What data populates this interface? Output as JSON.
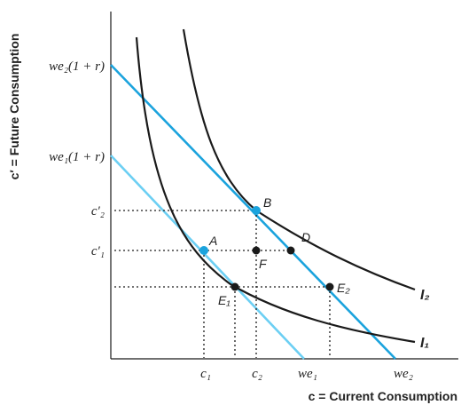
{
  "axes": {
    "x_title": "c = Current Consumption",
    "y_title": "c′ = Future Consumption"
  },
  "y_tick_labels": {
    "we2r": "we₂(1 + r)",
    "we1r": "we₁(1 + r)",
    "c2p": "c′₂",
    "c1p": "c′₁"
  },
  "x_tick_labels": {
    "c1": "c₁",
    "c2": "c₂",
    "we1": "we₁",
    "we2": "we₂"
  },
  "points": {
    "A": "A",
    "B": "B",
    "D": "D",
    "F": "F",
    "E1": "E₁",
    "E2": "E₂"
  },
  "curves": {
    "I1": "I₁",
    "I2": "I₂"
  },
  "colors": {
    "budget_line_new": "#1ba3dd",
    "budget_line_old": "#6ccff3",
    "indifference_curve": "#1a1a1a",
    "highlight_point": "#1ba3dd",
    "point": "#1a1a1a",
    "guide_line": "#1a1a1a"
  }
}
